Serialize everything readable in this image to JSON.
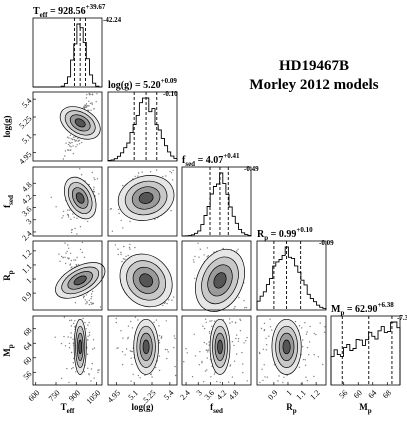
{
  "figure": {
    "object_name": "HD19467B",
    "model_name": "Morley 2012 models"
  },
  "chart_data": {
    "type": "corner",
    "parameters": [
      {
        "key": "teff",
        "axis_label_main": "T",
        "axis_label_sub": "eff",
        "title_main": "T",
        "title_sub": "eff",
        "title_value": " = 928.56",
        "title_plus": "+39.67",
        "title_minus": "-42.24",
        "median": 928.56,
        "err_plus": 39.67,
        "err_minus": 42.24,
        "range": [
          580,
          1090
        ],
        "ticks": [
          600,
          750,
          900,
          1050
        ],
        "hist_width": 0.048
      },
      {
        "key": "logg",
        "axis_label_main": "log(g)",
        "axis_label_sub": "",
        "title_main": "log(g)",
        "title_sub": "",
        "title_value": " = 5.20",
        "title_plus": "+0.09",
        "title_minus": "-0.10",
        "median": 5.2,
        "err_plus": 0.09,
        "err_minus": 0.1,
        "range": [
          4.88,
          5.46
        ],
        "ticks": [
          4.95,
          5.1,
          5.25,
          5.4
        ],
        "hist_width": 0.11
      },
      {
        "key": "fsed",
        "axis_label_main": "f",
        "axis_label_sub": "sed",
        "title_main": "f",
        "title_sub": "sed",
        "title_value": " = 4.07",
        "title_plus": "+0.41",
        "title_minus": "-0.49",
        "median": 4.07,
        "err_plus": 0.41,
        "err_minus": 0.49,
        "range": [
          2.2,
          5.6
        ],
        "ticks": [
          2.4,
          3.0,
          3.6,
          4.2,
          4.8
        ],
        "hist_width": 0.17
      },
      {
        "key": "rp",
        "axis_label_main": "R",
        "axis_label_sub": "p",
        "title_main": "R",
        "title_sub": "p",
        "title_value": " = 0.99",
        "title_plus": "+0.10",
        "title_minus": "-0.09",
        "median": 0.99,
        "err_plus": 0.1,
        "err_minus": 0.09,
        "range": [
          0.78,
          1.27
        ],
        "ticks": [
          0.9,
          1.0,
          1.1,
          1.2
        ],
        "hist_width": 0.2
      },
      {
        "key": "mp",
        "axis_label_main": "M",
        "axis_label_sub": "p",
        "title_main": "M",
        "title_sub": "p",
        "title_value": " = 62.90",
        "title_plus": "+6.38",
        "title_minus": "-7.30",
        "median": 62.9,
        "err_plus": 6.38,
        "err_minus": 7.3,
        "range": [
          52.5,
          71.5
        ],
        "ticks": [
          56,
          60,
          64,
          68
        ],
        "hist_width": 0.62
      }
    ],
    "y_ticks": {
      "logg": [
        4.95,
        5.1,
        5.25,
        5.4
      ],
      "fsed": [
        2.4,
        3.0,
        3.6,
        4.2,
        4.8
      ],
      "rp": [
        0.9,
        1.0,
        1.1,
        1.2
      ],
      "mp": [
        56,
        60,
        64,
        68
      ]
    },
    "correlations": {
      "logg-teff": 0.82,
      "fsed-teff": 0.3,
      "fsed-logg": 0.35,
      "rp-teff": -0.75,
      "rp-logg": -0.9,
      "rp-fsed": -0.3,
      "mp-teff": 0.0,
      "mp-logg": 0.0,
      "mp-fsed": 0.0,
      "mp-rp": 0.0
    },
    "colors": {
      "ink": "#000000",
      "density_dark": "#333333",
      "scatter": "#808080"
    }
  }
}
